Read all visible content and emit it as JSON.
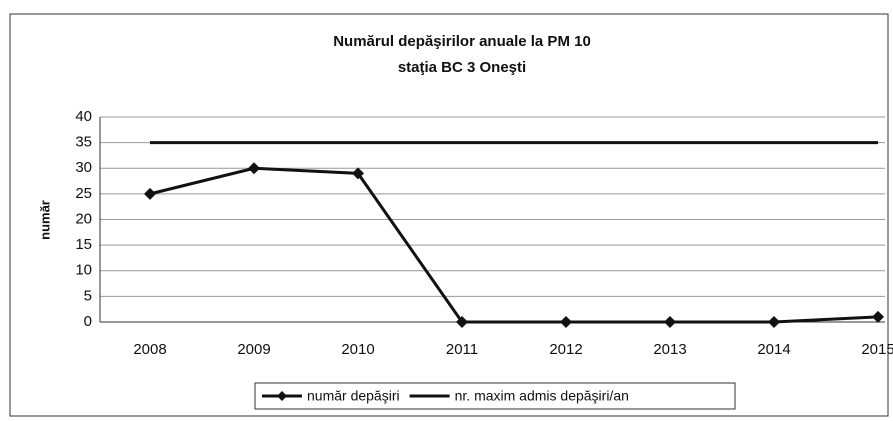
{
  "chart_data": {
    "type": "line",
    "title": "Numărul depăşirilor anuale la PM 10",
    "subtitle": "staţia BC 3 Oneşti",
    "y_label": "număr",
    "categories": [
      "2008",
      "2009",
      "2010",
      "2011",
      "2012",
      "2013",
      "2014",
      "2015"
    ],
    "series": [
      {
        "name": "număr depăşiri",
        "color": "#111111",
        "marker": "diamond",
        "values": [
          25,
          30,
          29,
          0,
          0,
          0,
          0,
          1
        ]
      },
      {
        "name": "nr. maxim admis depăşiri/an",
        "color": "#111111",
        "values": [
          35,
          35,
          35,
          35,
          35,
          35,
          35,
          35
        ]
      }
    ],
    "ylim": [
      0,
      40
    ],
    "yticks": [
      0,
      5,
      10,
      15,
      20,
      25,
      30,
      35,
      40
    ],
    "grid": true,
    "legend": "bottom"
  }
}
